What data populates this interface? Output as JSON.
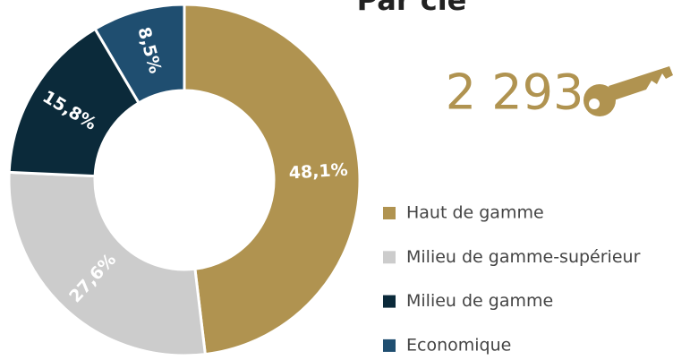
{
  "chart_data": {
    "type": "donut",
    "title": "Par clé",
    "kpi": "2 293",
    "categories": [
      "Haut de gamme",
      "Milieu de gamme-supérieur",
      "Milieu de gamme",
      "Economique"
    ],
    "values": [
      48.1,
      27.6,
      15.8,
      8.5
    ],
    "value_labels": [
      "48,1%",
      "27,6%",
      "15,8%",
      "8,5%"
    ],
    "colors": [
      "#b09350",
      "#cccccc",
      "#0b2a3a",
      "#1f4e70"
    ],
    "legend": "right"
  }
}
